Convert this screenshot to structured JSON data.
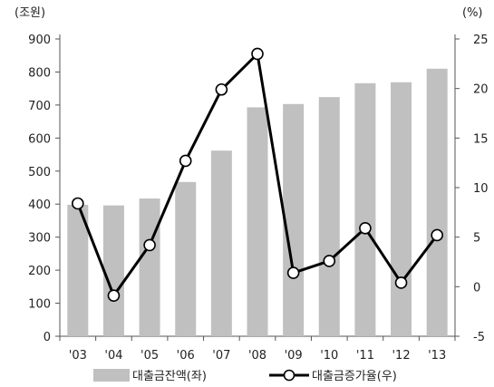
{
  "chart_data": {
    "type": "bar+line",
    "categories": [
      "'03",
      "'04",
      "'05",
      "'06",
      "'07",
      "'08",
      "'09",
      "'10",
      "'11",
      "'12",
      "'13"
    ],
    "series": [
      {
        "name": "대출금잔액(좌)",
        "type": "bar",
        "axis": "left",
        "color": "#c0c0c0",
        "values": [
          398,
          396,
          417,
          467,
          562,
          693,
          703,
          724,
          766,
          769,
          810
        ]
      },
      {
        "name": "대출금증가율(우)",
        "type": "line",
        "axis": "right",
        "color": "#000000",
        "marker": "hollow-circle",
        "values": [
          8.4,
          -0.9,
          4.2,
          12.7,
          19.9,
          23.5,
          1.4,
          2.6,
          5.9,
          0.4,
          5.2
        ]
      }
    ],
    "y_left": {
      "unit_label": "(조원)",
      "ylim": [
        0,
        900
      ],
      "ticks": [
        "0",
        "100",
        "200",
        "300",
        "400",
        "500",
        "600",
        "700",
        "800",
        "900"
      ]
    },
    "y_right": {
      "unit_label": "(%)",
      "ylim": [
        -5,
        25
      ],
      "ticks": [
        "-5",
        "0",
        "5",
        "10",
        "15",
        "20",
        "25"
      ]
    },
    "grid": false,
    "legend": "bottom"
  }
}
